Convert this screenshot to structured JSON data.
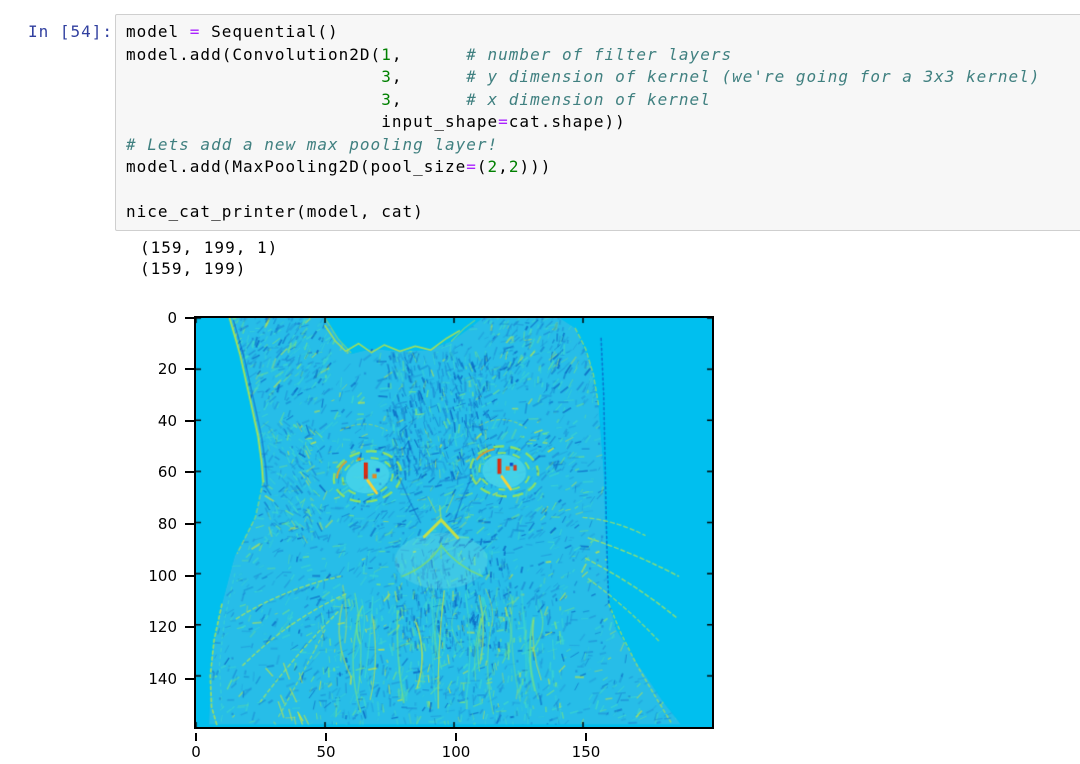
{
  "cell": {
    "prompt": "In [54]:",
    "code_lines": [
      [
        {
          "t": "model ",
          "s": "v"
        },
        {
          "t": "=",
          "s": "o"
        },
        {
          "t": " Sequential()",
          "s": "v"
        }
      ],
      [
        {
          "t": "model.add(Convolution2D(",
          "s": "v"
        },
        {
          "t": "1",
          "s": "n"
        },
        {
          "t": ",      ",
          "s": "v"
        },
        {
          "t": "# number of filter layers",
          "s": "c"
        }
      ],
      [
        {
          "t": "                        ",
          "s": "v"
        },
        {
          "t": "3",
          "s": "n"
        },
        {
          "t": ",      ",
          "s": "v"
        },
        {
          "t": "# y dimension of kernel (we're going for a 3x3 kernel)",
          "s": "c"
        }
      ],
      [
        {
          "t": "                        ",
          "s": "v"
        },
        {
          "t": "3",
          "s": "n"
        },
        {
          "t": ",      ",
          "s": "v"
        },
        {
          "t": "# x dimension of kernel",
          "s": "c"
        }
      ],
      [
        {
          "t": "                        input_shape",
          "s": "v"
        },
        {
          "t": "=",
          "s": "o"
        },
        {
          "t": "cat.shape))",
          "s": "v"
        }
      ],
      [
        {
          "t": "# Lets add a new max pooling layer!",
          "s": "c"
        }
      ],
      [
        {
          "t": "model.add(MaxPooling2D(pool_size",
          "s": "v"
        },
        {
          "t": "=",
          "s": "o"
        },
        {
          "t": "(",
          "s": "v"
        },
        {
          "t": "2",
          "s": "n"
        },
        {
          "t": ",",
          "s": "v"
        },
        {
          "t": "2",
          "s": "n"
        },
        {
          "t": ")))",
          "s": "v"
        }
      ],
      [],
      [
        {
          "t": "nice_cat_printer(model, cat)",
          "s": "v"
        }
      ]
    ]
  },
  "output": {
    "stdout_lines": [
      "(159, 199, 1)",
      "(159, 199)"
    ]
  },
  "chart_data": {
    "type": "heatmap",
    "title": "",
    "xlabel": "",
    "ylabel": "",
    "x_ticks": [
      0,
      50,
      100,
      150
    ],
    "y_ticks": [
      0,
      20,
      40,
      60,
      80,
      100,
      120,
      140
    ],
    "x_extent": [
      0,
      199
    ],
    "y_extent": [
      0,
      159
    ],
    "image_rows": 159,
    "image_cols": 199,
    "grid": false,
    "legend": false,
    "colormap": "jet",
    "description": "Convolution + max-pooling feature map of a cat photo in a jet colormap: flat cyan background, cat head/chest textured in blues and turquoise, yellow-green edge highlights along the outline, nose and whiskers, and red/orange hotspots inside both eyes"
  },
  "syntax_colors": {
    "v": "#000000",
    "o": "#AA22FF",
    "n": "#008000",
    "c": "#408080"
  },
  "colors": {
    "prompt": "#303F9F",
    "cell_background": "#f7f7f7",
    "cell_border": "#cfcfcf",
    "plot_background": "#00bfef",
    "cat_base": "#27bde8",
    "edge_green": "#aee24e",
    "edge_dark_blue": "#0c63c8",
    "eye_ring_green": "#93e35c",
    "eye_fill": "#46d3e9",
    "hotspot_red": "#e02808",
    "hotspot_orange": "#e8861c",
    "hotspot_yellow": "#ffd22e",
    "axis_color": "#000000"
  }
}
